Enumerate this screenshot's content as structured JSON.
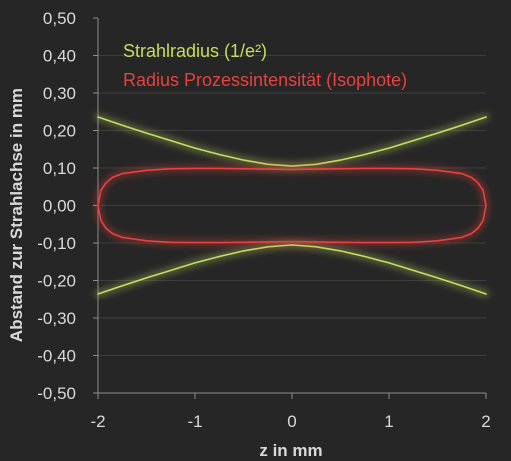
{
  "chart_data": {
    "type": "line",
    "xlabel": "z in mm",
    "ylabel": "Abstand zur Strahlachse in mm",
    "xlim": [
      -2,
      2
    ],
    "ylim": [
      -0.5,
      0.5
    ],
    "xticks": [
      "-2",
      "-1",
      "0",
      "1",
      "2"
    ],
    "yticks": [
      "0,50",
      "0,40",
      "0,30",
      "0,20",
      "0,10",
      "0,00",
      "-0,10",
      "-0,20",
      "-0,30",
      "-0,40",
      "-0,50"
    ],
    "grid": "horizontal",
    "legend_position": "top-center",
    "background": "#262626",
    "series": [
      {
        "name": "Strahlradius (1/e²)",
        "color": "#c3df5e",
        "x": [
          -2,
          -1.75,
          -1.5,
          -1.25,
          -1,
          -0.75,
          -0.5,
          -0.25,
          0,
          0.25,
          0.5,
          0.75,
          1,
          1.25,
          1.5,
          1.75,
          2
        ],
        "upper": [
          0.236,
          0.214,
          0.193,
          0.173,
          0.153,
          0.136,
          0.121,
          0.11,
          0.105,
          0.11,
          0.121,
          0.136,
          0.153,
          0.173,
          0.193,
          0.214,
          0.236
        ],
        "lower": [
          -0.236,
          -0.214,
          -0.193,
          -0.173,
          -0.153,
          -0.136,
          -0.121,
          -0.11,
          -0.105,
          -0.11,
          -0.121,
          -0.136,
          -0.153,
          -0.173,
          -0.193,
          -0.214,
          -0.236
        ]
      },
      {
        "name": "Radius Prozessintensität (Isophote)",
        "color": "#e8413f",
        "x": [
          -2,
          -1.97,
          -1.92,
          -1.85,
          -1.75,
          -1.5,
          -1.25,
          -1,
          -0.75,
          -0.5,
          -0.25,
          0,
          0.25,
          0.5,
          0.75,
          1,
          1.25,
          1.5,
          1.75,
          1.85,
          1.92,
          1.97,
          2
        ],
        "upper": [
          0,
          0.04,
          0.06,
          0.075,
          0.085,
          0.094,
          0.098,
          0.099,
          0.099,
          0.098,
          0.097,
          0.096,
          0.097,
          0.098,
          0.099,
          0.099,
          0.098,
          0.094,
          0.085,
          0.075,
          0.06,
          0.04,
          0
        ],
        "lower": [
          0,
          -0.04,
          -0.06,
          -0.075,
          -0.085,
          -0.094,
          -0.098,
          -0.099,
          -0.099,
          -0.098,
          -0.097,
          -0.096,
          -0.097,
          -0.098,
          -0.099,
          -0.099,
          -0.098,
          -0.094,
          -0.085,
          -0.075,
          -0.06,
          -0.04,
          0
        ]
      }
    ]
  }
}
